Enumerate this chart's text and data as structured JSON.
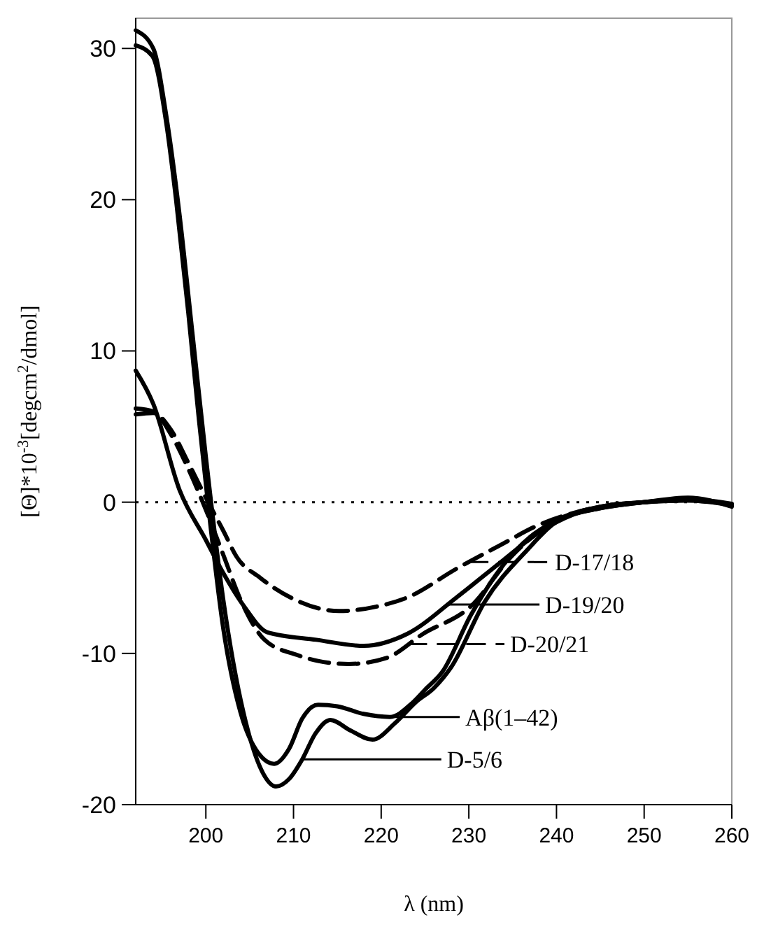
{
  "chart_data": {
    "type": "line",
    "xlabel": "λ (nm)",
    "ylabel": "[Θ]*10$^{-3}$[degcm$^{2}$/dmol]",
    "xlim": [
      192,
      260
    ],
    "xticks": [
      200,
      210,
      220,
      230,
      240,
      250,
      260
    ],
    "ylim": [
      -20,
      32
    ],
    "yticks": [
      -20,
      -10,
      0,
      10,
      20,
      30
    ],
    "grid": false,
    "legend": "right",
    "marker": "none",
    "ref_lines": [
      {
        "axis": "y",
        "value": 0,
        "line_style": "dotted",
        "color": "#000000"
      }
    ],
    "series": [
      {
        "name": "D-17/18",
        "color": "#000000",
        "line_style": "dashed",
        "x": [
          192,
          194,
          196,
          198,
          200,
          202,
          203.5,
          206.2,
          210,
          215.2,
          219.5,
          223,
          228.6,
          233.4,
          238,
          242,
          246,
          250,
          255,
          260
        ],
        "values": [
          5.8,
          5.9,
          4.8,
          2.6,
          0.3,
          -1.9,
          -3.6,
          -5,
          -6.4,
          -7.2,
          -6.9,
          -6.3,
          -4.4,
          -2.9,
          -1.5,
          -0.7,
          -0.2,
          0,
          0.1,
          -0.2
        ]
      },
      {
        "name": "D-19/20",
        "color": "#000000",
        "line_style": "solid",
        "x": [
          192,
          194,
          197,
          200,
          202,
          204.5,
          207,
          212.6,
          218,
          223,
          228.6,
          234,
          238,
          242,
          246,
          250,
          255,
          260
        ],
        "values": [
          8.7,
          6.5,
          0.8,
          -2.5,
          -4.7,
          -7,
          -8.6,
          -9.1,
          -9.5,
          -8.7,
          -6.3,
          -3.8,
          -2,
          -0.8,
          -0.2,
          0,
          0.2,
          -0.1
        ]
      },
      {
        "name": "D-20/21",
        "color": "#000000",
        "line_style": "dashed",
        "x": [
          192,
          194,
          196,
          198,
          200,
          202,
          204,
          206.7,
          210.4,
          212.8,
          216.3,
          220.6,
          224.8,
          230.2,
          235,
          240,
          245,
          250,
          255,
          260
        ],
        "values": [
          6.2,
          6,
          4.5,
          2.2,
          -0.5,
          -3.5,
          -6.5,
          -9.1,
          -10.1,
          -10.5,
          -10.7,
          -10.3,
          -8.7,
          -6.9,
          -3.5,
          -1.2,
          -0.3,
          0,
          0.1,
          -0.2
        ]
      },
      {
        "name": "Aβ(1–42)",
        "color": "#000000",
        "line_style": "solid",
        "x": [
          192,
          193.9,
          195.5,
          196.6,
          198,
          199.2,
          200.3,
          202,
          204,
          206,
          207.8,
          209.5,
          211,
          212.8,
          215,
          218,
          221,
          223.5,
          225,
          227,
          230.2,
          234,
          237,
          240,
          245,
          250,
          255,
          260
        ],
        "values": [
          30.2,
          29.5,
          25,
          20,
          12.5,
          5.5,
          -0.4,
          -8.4,
          -14,
          -16.6,
          -17.3,
          -16.3,
          -14.3,
          -13.4,
          -13.5,
          -14,
          -14.2,
          -13.3,
          -12.4,
          -11.2,
          -7.5,
          -4.1,
          -2.3,
          -1.2,
          -0.4,
          0,
          0.2,
          -0.2
        ]
      },
      {
        "name": "D-5/6",
        "color": "#000000",
        "line_style": "solid",
        "x": [
          192,
          194,
          195.5,
          197,
          198.5,
          200,
          202,
          204.8,
          206.5,
          208,
          209.5,
          211,
          212.5,
          214.2,
          216.5,
          219,
          221.6,
          224,
          226,
          228,
          231.8,
          236.6,
          240,
          245,
          250,
          255,
          260
        ],
        "values": [
          31.2,
          30,
          25.5,
          19,
          11,
          3,
          -6.5,
          -15.1,
          -17.9,
          -18.8,
          -18.3,
          -17,
          -15.3,
          -14.4,
          -15.1,
          -15.7,
          -14.6,
          -13.2,
          -12.3,
          -10.9,
          -6.6,
          -3.2,
          -1.3,
          -0.4,
          0,
          0.3,
          -0.3
        ]
      }
    ]
  }
}
